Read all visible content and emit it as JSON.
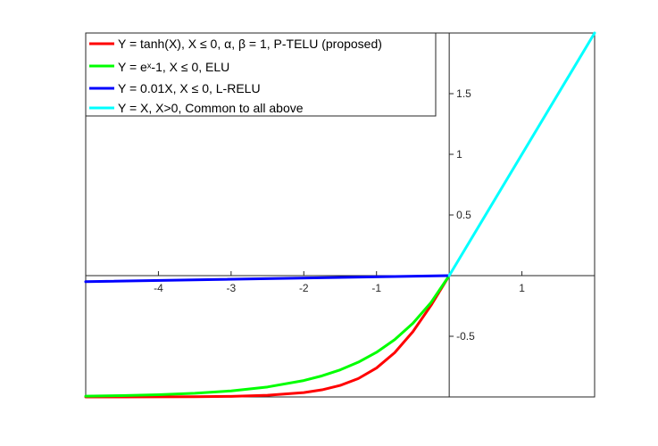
{
  "chart_data": {
    "type": "line",
    "title": "",
    "xlabel": "",
    "ylabel": "",
    "xlim": [
      -5,
      2
    ],
    "ylim": [
      -1,
      2
    ],
    "x_ticks": [
      -4,
      -3,
      -2,
      -1,
      1
    ],
    "y_ticks": [
      -0.5,
      0.5,
      1,
      1.5
    ],
    "x_tick_labels": [
      "-4",
      "-3",
      "-2",
      "-1",
      "1"
    ],
    "y_tick_labels": [
      "-0.5",
      "0.5",
      "1",
      "1.5"
    ],
    "grid": false,
    "axes_through_origin": true,
    "legend_position": "top-left",
    "series": [
      {
        "name": "Y = tanh(X), X ≤ 0, α, β = 1, P-TELU (proposed)",
        "color": "#ff0000",
        "x": [
          -5,
          -4.5,
          -4,
          -3.5,
          -3,
          -2.5,
          -2,
          -1.75,
          -1.5,
          -1.25,
          -1,
          -0.75,
          -0.5,
          -0.25,
          0
        ],
        "y": [
          -0.9999,
          -0.9998,
          -0.9993,
          -0.9982,
          -0.9951,
          -0.9866,
          -0.964,
          -0.9414,
          -0.9051,
          -0.8483,
          -0.7616,
          -0.6351,
          -0.4621,
          -0.2449,
          0
        ]
      },
      {
        "name": "Y = eˣ-1, X ≤ 0, ELU",
        "color": "#00ff00",
        "x": [
          -5,
          -4.5,
          -4,
          -3.5,
          -3,
          -2.5,
          -2,
          -1.75,
          -1.5,
          -1.25,
          -1,
          -0.75,
          -0.5,
          -0.25,
          0
        ],
        "y": [
          -0.9933,
          -0.9889,
          -0.9817,
          -0.9698,
          -0.9502,
          -0.9179,
          -0.8647,
          -0.8262,
          -0.7769,
          -0.7135,
          -0.6321,
          -0.5276,
          -0.3935,
          -0.2212,
          0
        ]
      },
      {
        "name": "Y = 0.01X, X ≤ 0, L-RELU",
        "color": "#0000ff",
        "x": [
          -5,
          0
        ],
        "y": [
          -0.05,
          0
        ]
      },
      {
        "name": "Y = X, X>0, Common to all above",
        "color": "#00ffff",
        "x": [
          0,
          2
        ],
        "y": [
          0,
          2
        ]
      }
    ]
  }
}
